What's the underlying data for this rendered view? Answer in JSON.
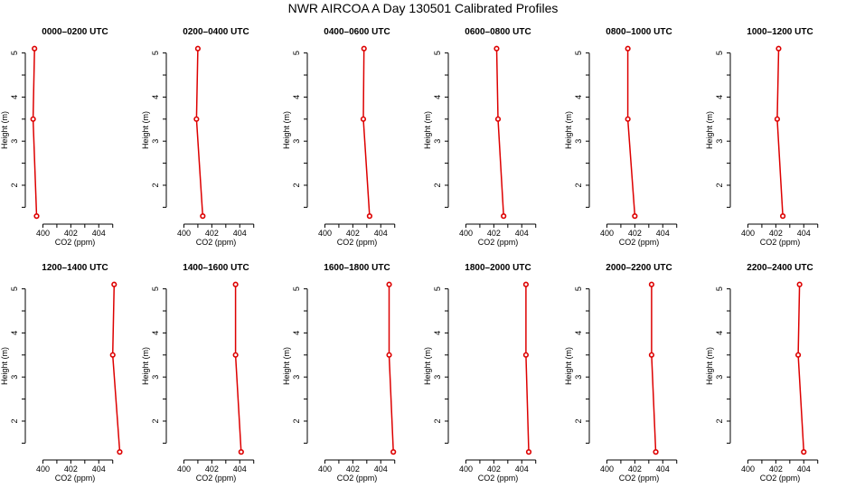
{
  "title": "NWR AIRCOA A  Day 130501  Calibrated Profiles",
  "style": {
    "series_color": "#dd0000",
    "axis_color": "#000000"
  },
  "chart_data": [
    {
      "type": "line",
      "title": "0000–0200 UTC",
      "xlabel": "CO2 (ppm)",
      "ylabel": "Height (m)",
      "xlim": [
        399,
        405.6
      ],
      "ylim": [
        1.2,
        5.3
      ],
      "xticks": [
        400,
        402,
        404
      ],
      "yticks": [
        2,
        3,
        4,
        5
      ],
      "series": [
        {
          "x": [
            399.4,
            399.3,
            399.55
          ],
          "y": [
            5.1,
            3.5,
            1.3
          ]
        }
      ]
    },
    {
      "type": "line",
      "title": "0200–0400 UTC",
      "xlabel": "CO2 (ppm)",
      "ylabel": "Height (m)",
      "xlim": [
        399,
        405.6
      ],
      "ylim": [
        1.2,
        5.3
      ],
      "xticks": [
        400,
        402,
        404
      ],
      "yticks": [
        2,
        3,
        4,
        5
      ],
      "series": [
        {
          "x": [
            401.0,
            400.9,
            401.35
          ],
          "y": [
            5.1,
            3.5,
            1.3
          ]
        }
      ]
    },
    {
      "type": "line",
      "title": "0400–0600 UTC",
      "xlabel": "CO2 (ppm)",
      "ylabel": "Height (m)",
      "xlim": [
        399,
        405.6
      ],
      "ylim": [
        1.2,
        5.3
      ],
      "xticks": [
        400,
        402,
        404
      ],
      "yticks": [
        2,
        3,
        4,
        5
      ],
      "series": [
        {
          "x": [
            402.8,
            402.75,
            403.2
          ],
          "y": [
            5.1,
            3.5,
            1.3
          ]
        }
      ]
    },
    {
      "type": "line",
      "title": "0600–0800 UTC",
      "xlabel": "CO2 (ppm)",
      "ylabel": "Height (m)",
      "xlim": [
        399,
        405.6
      ],
      "ylim": [
        1.2,
        5.3
      ],
      "xticks": [
        400,
        402,
        404
      ],
      "yticks": [
        2,
        3,
        4,
        5
      ],
      "series": [
        {
          "x": [
            402.2,
            402.3,
            402.7
          ],
          "y": [
            5.1,
            3.5,
            1.3
          ]
        }
      ]
    },
    {
      "type": "line",
      "title": "0800–1000 UTC",
      "xlabel": "CO2 (ppm)",
      "ylabel": "Height (m)",
      "xlim": [
        399,
        405.6
      ],
      "ylim": [
        1.2,
        5.3
      ],
      "xticks": [
        400,
        402,
        404
      ],
      "yticks": [
        2,
        3,
        4,
        5
      ],
      "series": [
        {
          "x": [
            401.5,
            401.5,
            402.0
          ],
          "y": [
            5.1,
            3.5,
            1.3
          ]
        }
      ]
    },
    {
      "type": "line",
      "title": "1000–1200 UTC",
      "xlabel": "CO2 (ppm)",
      "ylabel": "Height (m)",
      "xlim": [
        399,
        405.6
      ],
      "ylim": [
        1.2,
        5.3
      ],
      "xticks": [
        400,
        402,
        404
      ],
      "yticks": [
        2,
        3,
        4,
        5
      ],
      "series": [
        {
          "x": [
            402.2,
            402.1,
            402.5
          ],
          "y": [
            5.1,
            3.5,
            1.3
          ]
        }
      ]
    },
    {
      "type": "line",
      "title": "1200–1400 UTC",
      "xlabel": "CO2 (ppm)",
      "ylabel": "Height (m)",
      "xlim": [
        399,
        405.6
      ],
      "ylim": [
        1.2,
        5.3
      ],
      "xticks": [
        400,
        402,
        404
      ],
      "yticks": [
        2,
        3,
        4,
        5
      ],
      "series": [
        {
          "x": [
            405.1,
            405.0,
            405.5
          ],
          "y": [
            5.1,
            3.5,
            1.3
          ]
        }
      ]
    },
    {
      "type": "line",
      "title": "1400–1600 UTC",
      "xlabel": "CO2 (ppm)",
      "ylabel": "Height (m)",
      "xlim": [
        399,
        405.6
      ],
      "ylim": [
        1.2,
        5.3
      ],
      "xticks": [
        400,
        402,
        404
      ],
      "yticks": [
        2,
        3,
        4,
        5
      ],
      "series": [
        {
          "x": [
            403.7,
            403.7,
            404.1
          ],
          "y": [
            5.1,
            3.5,
            1.3
          ]
        }
      ]
    },
    {
      "type": "line",
      "title": "1600–1800 UTC",
      "xlabel": "CO2 (ppm)",
      "ylabel": "Height (m)",
      "xlim": [
        399,
        405.6
      ],
      "ylim": [
        1.2,
        5.3
      ],
      "xticks": [
        400,
        402,
        404
      ],
      "yticks": [
        2,
        3,
        4,
        5
      ],
      "series": [
        {
          "x": [
            404.6,
            404.6,
            404.9
          ],
          "y": [
            5.1,
            3.5,
            1.3
          ]
        }
      ]
    },
    {
      "type": "line",
      "title": "1800–2000 UTC",
      "xlabel": "CO2 (ppm)",
      "ylabel": "Height (m)",
      "xlim": [
        399,
        405.6
      ],
      "ylim": [
        1.2,
        5.3
      ],
      "xticks": [
        400,
        402,
        404
      ],
      "yticks": [
        2,
        3,
        4,
        5
      ],
      "series": [
        {
          "x": [
            404.3,
            404.3,
            404.5
          ],
          "y": [
            5.1,
            3.5,
            1.3
          ]
        }
      ]
    },
    {
      "type": "line",
      "title": "2000–2200 UTC",
      "xlabel": "CO2 (ppm)",
      "ylabel": "Height (m)",
      "xlim": [
        399,
        405.6
      ],
      "ylim": [
        1.2,
        5.3
      ],
      "xticks": [
        400,
        402,
        404
      ],
      "yticks": [
        2,
        3,
        4,
        5
      ],
      "series": [
        {
          "x": [
            403.2,
            403.2,
            403.5
          ],
          "y": [
            5.1,
            3.5,
            1.3
          ]
        }
      ]
    },
    {
      "type": "line",
      "title": "2200–2400 UTC",
      "xlabel": "CO2 (ppm)",
      "ylabel": "Height (m)",
      "xlim": [
        399,
        405.6
      ],
      "ylim": [
        1.2,
        5.3
      ],
      "xticks": [
        400,
        402,
        404
      ],
      "yticks": [
        2,
        3,
        4,
        5
      ],
      "series": [
        {
          "x": [
            403.7,
            403.6,
            404.0
          ],
          "y": [
            5.1,
            3.5,
            1.3
          ]
        }
      ]
    }
  ]
}
